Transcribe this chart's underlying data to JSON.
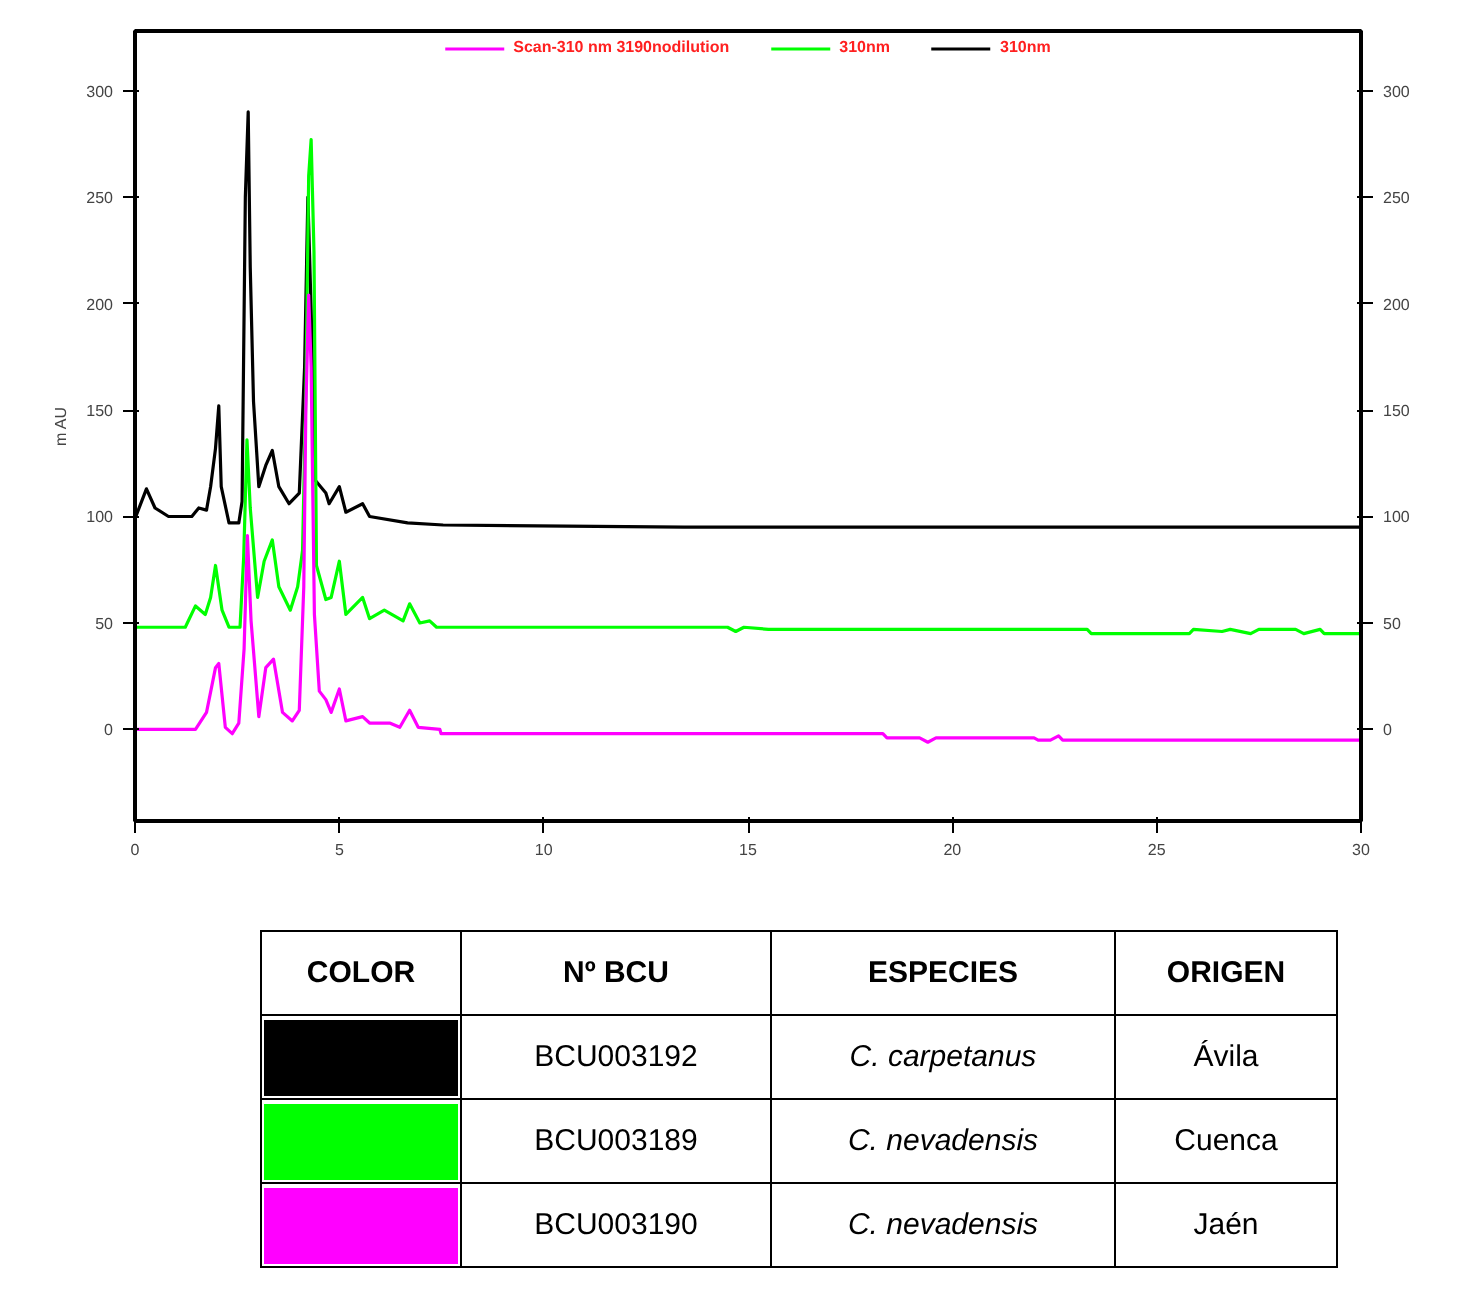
{
  "chart_data": [
    {
      "type": "line",
      "ylabel": "m AU",
      "xlim": [
        0,
        30
      ],
      "xticks": [
        0,
        5,
        10,
        15,
        20,
        25,
        30
      ],
      "ylim": [
        -43,
        328
      ],
      "yticks": [
        0,
        50,
        100,
        150,
        200,
        250,
        300
      ],
      "y2lim": [
        -43,
        328
      ],
      "y2ticks": [
        0,
        50,
        100,
        150,
        200,
        250,
        300
      ],
      "legend": "top",
      "grid": false,
      "line_style": "solid",
      "marker": "none",
      "series": [
        {
          "name": "Scan-310 nm 3190nodilution",
          "color": "#ff00ff",
          "x": [
            0,
            1.48,
            1.75,
            1.97,
            2.05,
            2.21,
            2.38,
            2.54,
            2.67,
            2.75,
            2.84,
            3.03,
            3.2,
            3.39,
            3.61,
            3.85,
            4.02,
            4.13,
            4.18,
            4.25,
            4.31,
            4.39,
            4.51,
            4.67,
            4.8,
            5.0,
            5.16,
            5.57,
            5.74,
            6.23,
            6.48,
            6.72,
            6.93,
            7.46,
            7.49,
            18.3,
            18.4,
            19.2,
            19.4,
            19.6,
            22.0,
            22.1,
            22.4,
            22.6,
            22.7,
            30
          ],
          "values": [
            0,
            0,
            8,
            29,
            31,
            1,
            -2,
            3,
            38,
            91,
            51,
            6,
            29,
            33,
            8,
            4,
            9,
            67,
            150,
            204,
            170,
            54,
            18,
            14,
            8,
            19,
            4,
            6,
            3,
            3,
            1,
            9,
            1,
            0,
            -2,
            -2,
            -4,
            -4,
            -6,
            -4,
            -4,
            -5,
            -5,
            -3,
            -5,
            -5
          ]
        },
        {
          "name": "310nm",
          "color": "#00ff00",
          "x": [
            0,
            1.23,
            1.48,
            1.72,
            1.85,
            1.97,
            2.13,
            2.3,
            2.57,
            2.66,
            2.74,
            2.82,
            3.0,
            3.16,
            3.36,
            3.52,
            3.8,
            3.98,
            4.1,
            4.18,
            4.25,
            4.31,
            4.38,
            4.44,
            4.67,
            4.8,
            5.0,
            5.16,
            5.57,
            5.74,
            6.1,
            6.56,
            6.72,
            6.97,
            7.21,
            7.38,
            14.5,
            14.7,
            14.9,
            15.5,
            23.3,
            23.4,
            25.8,
            25.9,
            26.6,
            26.8,
            27.3,
            27.5,
            28.4,
            28.6,
            29.0,
            29.1,
            30
          ],
          "values": [
            48,
            48,
            58,
            54,
            62,
            77,
            56,
            48,
            48,
            81,
            136,
            104,
            62,
            79,
            89,
            67,
            56,
            67,
            84,
            157,
            260,
            277,
            224,
            77,
            61,
            62,
            79,
            54,
            62,
            52,
            56,
            51,
            59,
            50,
            51,
            48,
            48,
            46,
            48,
            47,
            47,
            45,
            45,
            47,
            46,
            47,
            45,
            47,
            47,
            45,
            47,
            45,
            45
          ]
        },
        {
          "name": "310nm",
          "color": "#000000",
          "x": [
            0,
            0.28,
            0.49,
            0.82,
            1.39,
            1.56,
            1.75,
            1.85,
            1.97,
            2.05,
            2.11,
            2.3,
            2.54,
            2.62,
            2.7,
            2.77,
            2.82,
            2.9,
            3.03,
            3.2,
            3.36,
            3.52,
            3.77,
            4.02,
            4.15,
            4.23,
            4.31,
            4.41,
            4.67,
            4.75,
            5.0,
            5.16,
            5.57,
            5.74,
            6.67,
            7.54,
            13.44,
            30
          ],
          "values": [
            99,
            113,
            104,
            100,
            100,
            104,
            103,
            114,
            132,
            152,
            114,
            97,
            97,
            107,
            250,
            290,
            217,
            154,
            114,
            124,
            131,
            114,
            106,
            111,
            170,
            250,
            197,
            117,
            111,
            106,
            114,
            102,
            106,
            100,
            97,
            96,
            95,
            95
          ]
        }
      ]
    },
    {
      "type": "other",
      "annotations": [
        "COLOR",
        "Nº BCU",
        "ESPECIES",
        "ORIGEN",
        "BCU003192",
        "C. carpetanus",
        "Ávila",
        "BCU003189",
        "C. nevadensis",
        "Cuenca",
        "BCU003190",
        "C. nevadensis",
        "Jaén"
      ],
      "colors": [
        "#000000",
        "#00ff00",
        "#ff00ff"
      ]
    }
  ]
}
